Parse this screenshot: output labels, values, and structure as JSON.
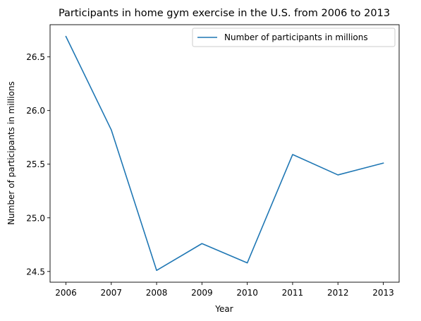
{
  "chart_data": {
    "type": "line",
    "title": "Participants in home gym exercise in the U.S. from 2006 to 2013",
    "xlabel": "Year",
    "ylabel": "Number of participants in millions",
    "x": [
      2006,
      2007,
      2008,
      2009,
      2010,
      2011,
      2012,
      2013
    ],
    "series": [
      {
        "name": "Number of participants in millions",
        "color": "#1f77b4",
        "values": [
          26.69,
          25.82,
          24.51,
          24.76,
          24.58,
          25.59,
          25.4,
          25.51
        ]
      }
    ],
    "x_ticks": [
      "2006",
      "2007",
      "2008",
      "2009",
      "2010",
      "2011",
      "2012",
      "2013"
    ],
    "y_ticks": [
      24.5,
      25.0,
      25.5,
      26.0,
      26.5
    ],
    "y_tick_labels": [
      "24.5",
      "25.0",
      "25.5",
      "26.0",
      "26.5"
    ],
    "xlim": [
      2005.65,
      2013.35
    ],
    "ylim": [
      24.4,
      26.8
    ],
    "grid": false,
    "legend_position": "upper right"
  }
}
